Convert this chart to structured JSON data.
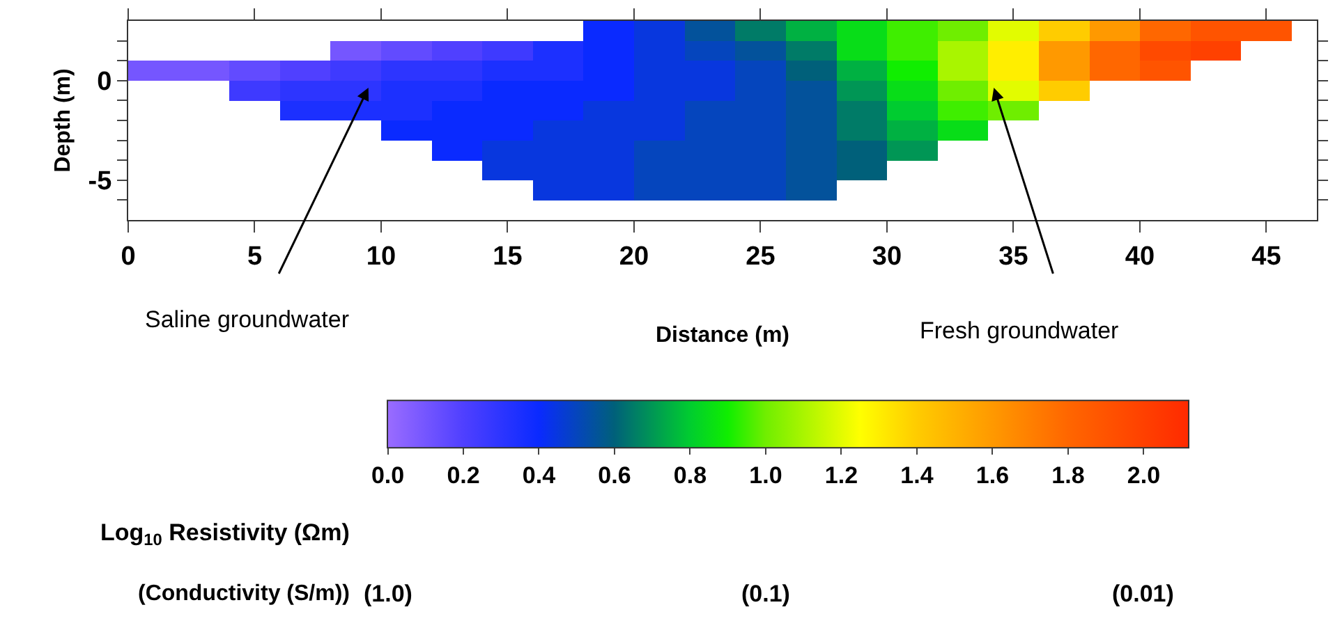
{
  "chart_data": {
    "type": "heatmap",
    "xlabel": "Distance (m)",
    "ylabel": "Depth (m)",
    "clabel": "Log$_{10}$ Resistivity (Ωm)",
    "x": [
      1,
      3,
      5,
      7,
      9,
      11,
      13,
      15,
      17,
      19,
      21,
      23,
      25,
      27,
      29,
      31,
      33,
      35,
      37,
      39,
      41,
      43,
      45
    ],
    "y": [
      2.5,
      1.5,
      0.5,
      -0.5,
      -1.5,
      -2.5,
      -3.5,
      -4.5,
      -5.5
    ],
    "cells": [
      [
        null,
        null,
        null,
        null,
        null,
        null,
        null,
        null,
        null,
        0.4,
        0.45,
        0.55,
        0.65,
        0.75,
        0.85,
        0.95,
        1.0,
        1.2,
        1.4,
        1.6,
        1.8,
        1.9,
        1.9
      ],
      [
        null,
        null,
        null,
        null,
        0.1,
        0.15,
        0.2,
        0.25,
        0.35,
        0.4,
        0.45,
        0.5,
        0.55,
        0.65,
        0.85,
        0.95,
        1.1,
        1.3,
        1.6,
        1.8,
        1.95,
        2.0,
        null
      ],
      [
        0.1,
        0.1,
        0.15,
        0.2,
        0.25,
        0.3,
        0.3,
        0.35,
        0.35,
        0.4,
        0.45,
        0.45,
        0.5,
        0.6,
        0.75,
        0.9,
        1.1,
        1.3,
        1.6,
        1.8,
        1.9,
        null,
        null
      ],
      [
        null,
        null,
        0.25,
        0.3,
        0.3,
        0.35,
        0.35,
        0.4,
        0.4,
        0.4,
        0.45,
        0.45,
        0.5,
        0.55,
        0.7,
        0.85,
        1.0,
        1.2,
        1.4,
        null,
        null,
        null,
        null
      ],
      [
        null,
        null,
        null,
        0.35,
        0.35,
        0.35,
        0.4,
        0.4,
        0.4,
        0.45,
        0.45,
        0.5,
        0.5,
        0.55,
        0.65,
        0.8,
        0.95,
        1.0,
        null,
        null,
        null,
        null,
        null
      ],
      [
        null,
        null,
        null,
        null,
        null,
        0.4,
        0.4,
        0.4,
        0.45,
        0.45,
        0.45,
        0.5,
        0.5,
        0.55,
        0.65,
        0.75,
        0.85,
        null,
        null,
        null,
        null,
        null,
        null
      ],
      [
        null,
        null,
        null,
        null,
        null,
        null,
        0.4,
        0.45,
        0.45,
        0.45,
        0.5,
        0.5,
        0.5,
        0.55,
        0.6,
        0.7,
        null,
        null,
        null,
        null,
        null,
        null,
        null
      ],
      [
        null,
        null,
        null,
        null,
        null,
        null,
        null,
        0.45,
        0.45,
        0.45,
        0.5,
        0.5,
        0.5,
        0.55,
        0.6,
        null,
        null,
        null,
        null,
        null,
        null,
        null,
        null
      ],
      [
        null,
        null,
        null,
        null,
        null,
        null,
        null,
        null,
        0.45,
        0.45,
        0.5,
        0.5,
        0.5,
        0.55,
        null,
        null,
        null,
        null,
        null,
        null,
        null,
        null,
        null
      ]
    ],
    "xlim": [
      0,
      47
    ],
    "xticks": [
      0,
      5,
      10,
      15,
      20,
      25,
      30,
      35,
      40,
      45
    ],
    "ylim": [
      -7,
      3
    ],
    "yticks": [
      {
        "value": -6,
        "label": null
      },
      -5,
      {
        "value": -4,
        "label": null
      },
      {
        "value": -3,
        "label": null
      },
      {
        "value": -2,
        "label": null
      },
      {
        "value": -1,
        "label": null
      },
      0,
      {
        "value": 1,
        "label": null
      },
      {
        "value": 2,
        "label": null
      }
    ],
    "clim": [
      0,
      2.12
    ],
    "cticks": [
      {
        "value": 0,
        "label": "0.0"
      },
      0.2,
      0.4,
      0.6,
      0.8,
      {
        "value": 1,
        "label": "1.0"
      },
      1.2,
      1.4,
      1.6,
      1.8,
      {
        "value": 2,
        "label": "2.0"
      }
    ],
    "annotations": [
      "Saline groundwater",
      "Fresh groundwater",
      "(Conductivity (S/m))",
      "(1.0)",
      "(0.1)",
      "(0.01)"
    ]
  }
}
